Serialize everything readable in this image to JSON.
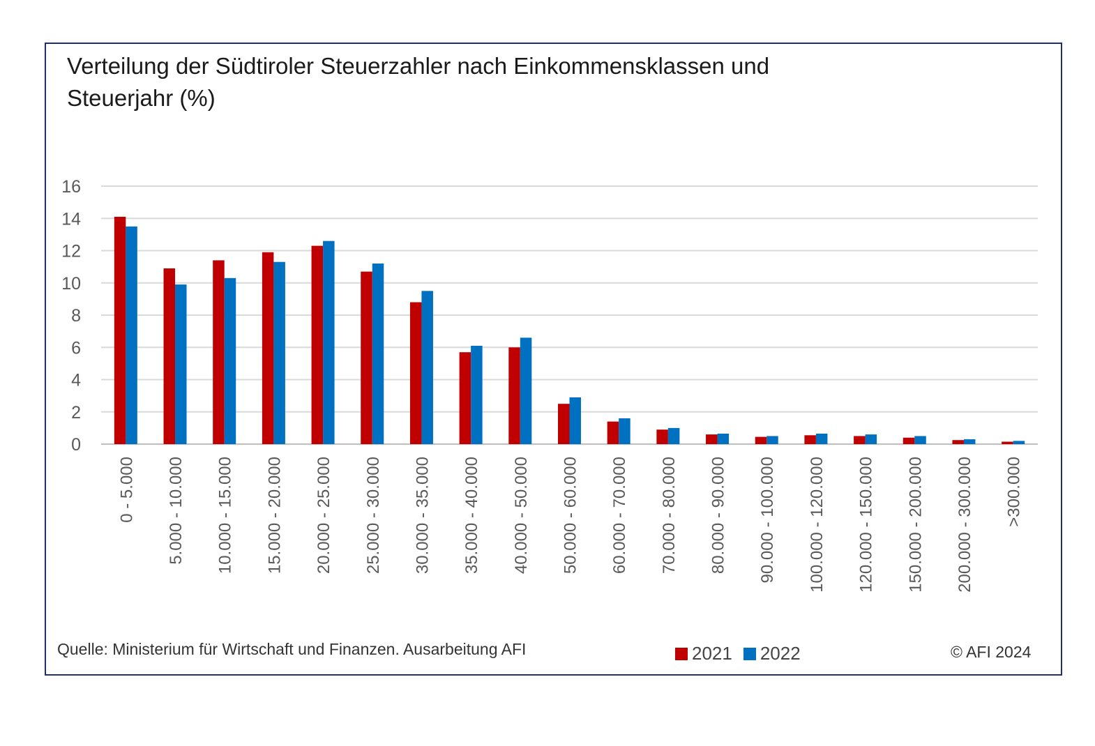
{
  "chart_data": {
    "type": "bar",
    "title": "Verteilung der Südtiroler Steuerzahler nach Einkommensklassen und Steuerjahr (%)",
    "categories": [
      "0 - 5.000",
      "5.000 - 10.000",
      "10.000 - 15.000",
      "15.000 - 20.000",
      "20.000 - 25.000",
      "25.000 - 30.000",
      "30.000 - 35.000",
      "35.000 - 40.000",
      "40.000 - 50.000",
      "50.000 - 60.000",
      "60.000 - 70.000",
      "70.000 - 80.000",
      "80.000 - 90.000",
      "90.000 - 100.000",
      "100.000 - 120.000",
      "120.000 - 150.000",
      "150.000 - 200.000",
      "200.000 - 300.000",
      ">300.000"
    ],
    "series": [
      {
        "name": "2021",
        "color": "#c00000",
        "values": [
          14.1,
          10.9,
          11.4,
          11.9,
          12.3,
          10.7,
          8.8,
          5.7,
          6.0,
          2.5,
          1.4,
          0.9,
          0.6,
          0.45,
          0.55,
          0.5,
          0.4,
          0.25,
          0.15
        ]
      },
      {
        "name": "2022",
        "color": "#0070c0",
        "values": [
          13.5,
          9.9,
          10.3,
          11.3,
          12.6,
          11.2,
          9.5,
          6.1,
          6.6,
          2.9,
          1.6,
          1.0,
          0.65,
          0.5,
          0.65,
          0.6,
          0.5,
          0.3,
          0.2
        ]
      }
    ],
    "yticks": [
      0,
      2,
      4,
      6,
      8,
      10,
      12,
      14,
      16
    ],
    "ylim": [
      0,
      16
    ],
    "grid": true,
    "legend": "bottom"
  },
  "footer": {
    "source": "Quelle: Ministerium für Wirtschaft und Finanzen. Ausarbeitung AFI",
    "copyright": "© AFI 2024"
  }
}
